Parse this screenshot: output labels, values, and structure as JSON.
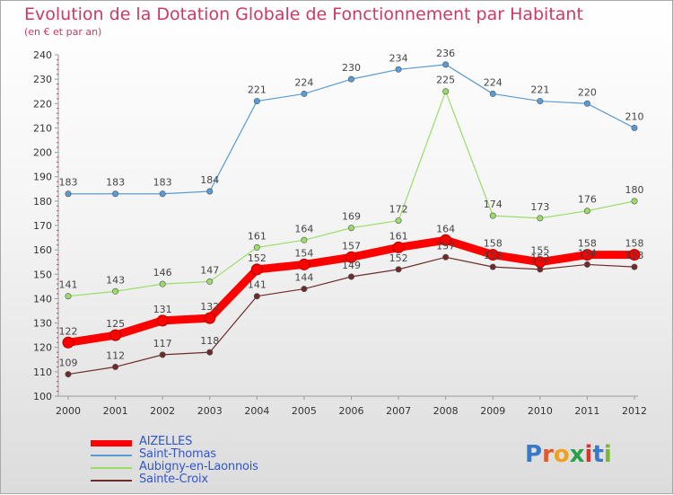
{
  "header": {
    "title": "Evolution de la Dotation Globale de Fonctionnement par Habitant",
    "subtitle": "(en € et par an)"
  },
  "logo": {
    "text": "Proxiti",
    "letter_colors": [
      "#3a78c8",
      "#e05a2b",
      "#f0a020",
      "#2aa04a",
      "#d8352a",
      "#3a78c8",
      "#7ab830"
    ]
  },
  "chart_data": {
    "type": "line",
    "title": "Evolution de la Dotation Globale de Fonctionnement par Habitant",
    "subtitle": "(en € et par an)",
    "xlabel": "",
    "ylabel": "",
    "categories": [
      "2000",
      "2001",
      "2002",
      "2003",
      "2004",
      "2005",
      "2006",
      "2007",
      "2008",
      "2009",
      "2010",
      "2011",
      "2012"
    ],
    "ylim": [
      100,
      240
    ],
    "yticks": [
      100,
      110,
      120,
      130,
      140,
      150,
      160,
      170,
      180,
      190,
      200,
      210,
      220,
      230,
      240
    ],
    "grid": false,
    "legend_position": "bottom-left",
    "series": [
      {
        "name": "AIZELLES",
        "color": "#ff0000",
        "emphasis": "thick",
        "values": [
          122,
          125,
          131,
          132,
          152,
          154,
          157,
          161,
          164,
          158,
          155,
          158,
          158
        ],
        "labels": [
          "122",
          "125",
          "131",
          "132",
          "152",
          "154",
          "157",
          "161",
          "164",
          "158",
          "155",
          "158",
          "158"
        ]
      },
      {
        "name": "Saint-Thomas",
        "color": "#5a9bd4",
        "emphasis": "thin",
        "values": [
          183,
          183,
          183,
          184,
          221,
          224,
          230,
          234,
          236,
          224,
          221,
          220,
          210
        ],
        "labels": [
          "183",
          "183",
          "183",
          "184",
          "221",
          "224",
          "230",
          "234",
          "236",
          "224",
          "221",
          "220",
          "210"
        ]
      },
      {
        "name": "Aubigny-en-Laonnois",
        "color": "#99dd66",
        "emphasis": "thin",
        "values": [
          141,
          143,
          146,
          147,
          161,
          164,
          169,
          172,
          225,
          174,
          173,
          176,
          180
        ],
        "labels": [
          "141",
          "143",
          "146",
          "147",
          "161",
          "164",
          "169",
          "172",
          "225",
          "174",
          "173",
          "176",
          "180"
        ]
      },
      {
        "name": "Sainte-Croix",
        "color": "#6e2b2b",
        "emphasis": "thin",
        "values": [
          109,
          112,
          117,
          118,
          141,
          144,
          149,
          152,
          157,
          153,
          152,
          154,
          153
        ],
        "labels": [
          "109",
          "112",
          "117",
          "118",
          "141",
          "144",
          "149",
          "152",
          "157",
          "153",
          "152",
          "154",
          "153"
        ]
      }
    ]
  }
}
